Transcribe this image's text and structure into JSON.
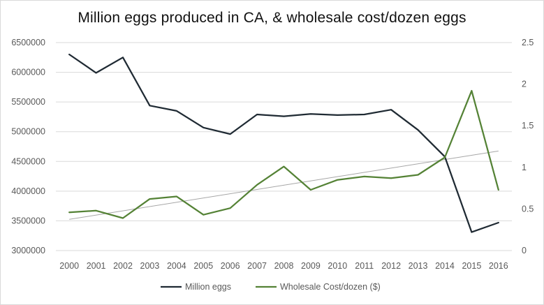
{
  "chart_data": {
    "type": "line",
    "title": "Million eggs produced in CA, & wholesale cost/dozen eggs",
    "categories": [
      "2000",
      "2001",
      "2002",
      "2003",
      "2004",
      "2005",
      "2006",
      "2007",
      "2008",
      "2009",
      "2010",
      "2011",
      "2012",
      "2013",
      "2014",
      "2015",
      "2016"
    ],
    "series": [
      {
        "name": "Million eggs",
        "axis": "left",
        "color": "#1f2a33",
        "values": [
          6300000,
          5990000,
          6250000,
          5440000,
          5350000,
          5070000,
          4960000,
          5290000,
          5260000,
          5300000,
          5280000,
          5290000,
          5370000,
          5030000,
          4580000,
          3310000,
          3470000
        ]
      },
      {
        "name": "Wholesale Cost/dozen ($)",
        "axis": "right",
        "color": "#548235",
        "values": [
          0.46,
          0.48,
          0.39,
          0.62,
          0.65,
          0.43,
          0.51,
          0.79,
          1.01,
          0.73,
          0.85,
          0.89,
          0.87,
          0.91,
          1.12,
          1.92,
          0.73
        ]
      }
    ],
    "trendline": {
      "of_series": "Wholesale Cost/dozen ($)",
      "type": "linear",
      "color": "#a6a6a6"
    },
    "y_left": {
      "min": 3000000,
      "max": 6500000,
      "ticks": [
        "3000000",
        "3500000",
        "4000000",
        "4500000",
        "5000000",
        "5500000",
        "6000000",
        "6500000"
      ]
    },
    "y_right": {
      "min": 0,
      "max": 2.5,
      "ticks": [
        "0",
        "0.5",
        "1",
        "1.5",
        "2",
        "2.5"
      ]
    },
    "grid": true,
    "legend_position": "bottom"
  }
}
